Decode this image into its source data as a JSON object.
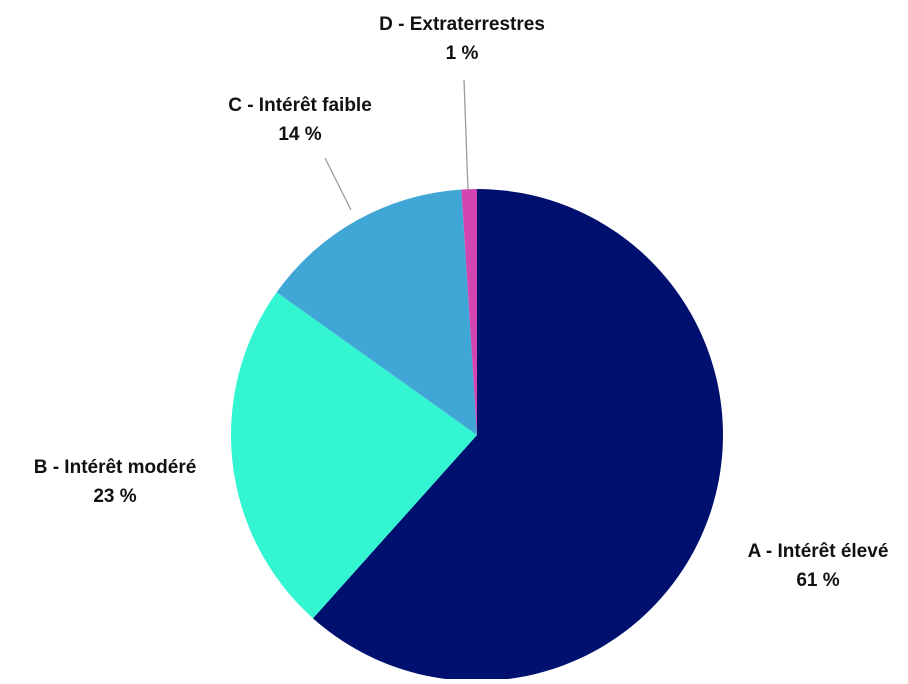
{
  "chart_data": {
    "type": "pie",
    "title": "",
    "slices": [
      {
        "label": "A - Intérêt élevé",
        "value": 61,
        "value_label": "61 %",
        "color": "#00106f"
      },
      {
        "label": "B - Intérêt modéré",
        "value": 23,
        "value_label": "23 %",
        "color": "#33f5d2"
      },
      {
        "label": "C - Intérêt faible",
        "value": 14,
        "value_label": "14 %",
        "color": "#3fa6d6"
      },
      {
        "label": "D - Extraterrestres",
        "value": 1,
        "value_label": "1 %",
        "color": "#d545b2"
      }
    ],
    "start_angle": "12 o'clock",
    "direction": "clockwise"
  }
}
